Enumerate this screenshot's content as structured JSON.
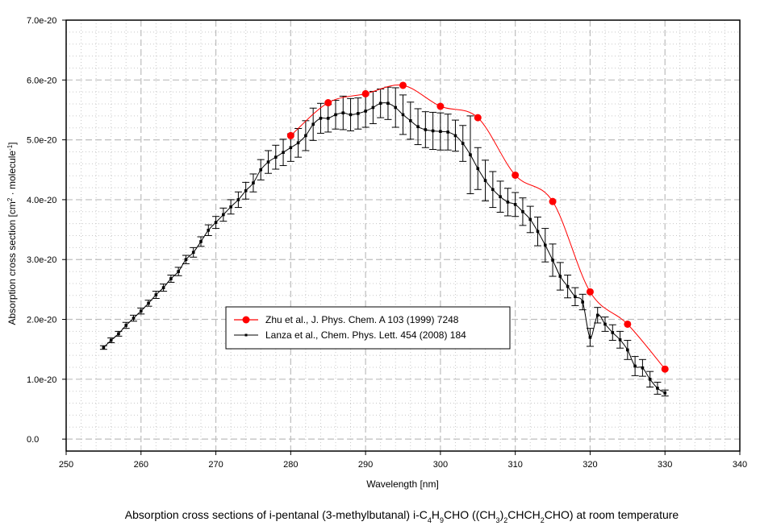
{
  "chart_data": {
    "type": "line",
    "title": "",
    "xlabel": "Wavelength [nm]",
    "ylabel": {
      "prefix": "Absorption cross section [cm",
      "sup1": "2",
      "middle": " · molecule",
      "sup2": "-1",
      "suffix": "]"
    },
    "caption": {
      "p1": "Absorption cross sections of i-pentanal (3-methylbutanal) i-C",
      "s1": "4",
      "p2": "H",
      "s2": "9",
      "p3": "CHO ((CH",
      "s3": "3",
      "p4": ")",
      "s4": "2",
      "p5": "CHCH",
      "s5": "2",
      "p6": "CHO) at room temperature"
    },
    "xlim": [
      250,
      340
    ],
    "ylim": [
      -2e-21,
      7e-20
    ],
    "x_ticks": [
      250,
      260,
      270,
      280,
      290,
      300,
      310,
      320,
      330,
      340
    ],
    "x_tick_labels": [
      "250",
      "260",
      "270",
      "280",
      "290",
      "300",
      "310",
      "320",
      "330",
      "340"
    ],
    "y_ticks": [
      0,
      1e-20,
      2e-20,
      3e-20,
      4e-20,
      5e-20,
      6e-20,
      7e-20
    ],
    "y_tick_labels": [
      "0.0",
      "1.0e-20",
      "2.0e-20",
      "3.0e-20",
      "4.0e-20",
      "5.0e-20",
      "6.0e-20",
      "7.0e-20"
    ],
    "grid": true,
    "legend_position": "center-left",
    "series": [
      {
        "name": "Zhu et al., J. Phys. Chem. A 103 (1999) 7248",
        "color": "#ff0000",
        "marker": "circle",
        "x": [
          280,
          285,
          290,
          295,
          300,
          305,
          310,
          315,
          320,
          325,
          330
        ],
        "y": [
          5.07e-20,
          5.62e-20,
          5.77e-20,
          5.91e-20,
          5.56e-20,
          5.37e-20,
          4.41e-20,
          3.97e-20,
          2.46e-20,
          1.92e-20,
          1.17e-20
        ]
      },
      {
        "name": "Lanza et al., Chem. Phys. Lett. 454 (2008) 184",
        "color": "#000000",
        "marker": "dot",
        "x": [
          255,
          256,
          257,
          258,
          259,
          260,
          261,
          262,
          263,
          264,
          265,
          266,
          267,
          268,
          269,
          270,
          271,
          272,
          273,
          274,
          275,
          276,
          277,
          278,
          279,
          280,
          281,
          282,
          283,
          284,
          285,
          286,
          287,
          288,
          289,
          290,
          291,
          292,
          293,
          294,
          295,
          296,
          297,
          298,
          299,
          300,
          301,
          302,
          303,
          304,
          305,
          306,
          307,
          308,
          309,
          310,
          311,
          312,
          313,
          314,
          315,
          316,
          317,
          318,
          319,
          320,
          321,
          322,
          323,
          324,
          325,
          326,
          327,
          328,
          329,
          330
        ],
        "y": [
          1.53e-20,
          1.65e-20,
          1.76e-20,
          1.9e-20,
          2.02e-20,
          2.14e-20,
          2.27e-20,
          2.41e-20,
          2.53e-20,
          2.68e-20,
          2.8e-20,
          3e-20,
          3.12e-20,
          3.3e-20,
          3.49e-20,
          3.62e-20,
          3.75e-20,
          3.88e-20,
          4e-20,
          4.15e-20,
          4.28e-20,
          4.5e-20,
          4.63e-20,
          4.71e-20,
          4.79e-20,
          4.87e-20,
          4.95e-20,
          5.07e-20,
          5.26e-20,
          5.36e-20,
          5.36e-20,
          5.42e-20,
          5.45e-20,
          5.42e-20,
          5.44e-20,
          5.48e-20,
          5.54e-20,
          5.61e-20,
          5.61e-20,
          5.54e-20,
          5.42e-20,
          5.32e-20,
          5.22e-20,
          5.17e-20,
          5.15e-20,
          5.14e-20,
          5.13e-20,
          5.07e-20,
          4.94e-20,
          4.75e-20,
          4.52e-20,
          4.32e-20,
          4.17e-20,
          4.05e-20,
          3.96e-20,
          3.92e-20,
          3.8e-20,
          3.67e-20,
          3.47e-20,
          3.24e-20,
          2.99e-20,
          2.72e-20,
          2.55e-20,
          2.38e-20,
          2.29e-20,
          1.7e-20,
          2.07e-20,
          1.92e-20,
          1.78e-20,
          1.66e-20,
          1.49e-20,
          1.22e-20,
          1.19e-20,
          1e-20,
          8.5e-21,
          7.7e-21
        ],
        "yerr": [
          3e-22,
          4e-22,
          4e-22,
          5e-22,
          5e-22,
          5e-22,
          5e-22,
          6e-22,
          6e-22,
          6e-22,
          7e-22,
          7e-22,
          8e-22,
          8e-22,
          9e-22,
          1e-21,
          1.1e-21,
          1.2e-21,
          1.3e-21,
          1.4e-21,
          1.5e-21,
          1.7e-21,
          1.9e-21,
          2e-21,
          2.2e-21,
          2.3e-21,
          2.4e-21,
          2.5e-21,
          2.7e-21,
          2.5e-21,
          2.3e-21,
          2.4e-21,
          2.8e-21,
          2.7e-21,
          2.6e-21,
          2.7e-21,
          2.7e-21,
          2.4e-21,
          2.7e-21,
          3.3e-21,
          3.3e-21,
          3.1e-21,
          3e-21,
          3e-21,
          3.1e-21,
          3.1e-21,
          3e-21,
          2.6e-21,
          3e-21,
          6.5e-21,
          3.5e-21,
          3.4e-21,
          3e-21,
          2.6e-21,
          2.3e-21,
          2e-21,
          2.3e-21,
          2.2e-21,
          2.4e-21,
          2.8e-21,
          2.7e-21,
          2.3e-21,
          1.9e-21,
          1.5e-21,
          1.3e-21,
          1.5e-21,
          1.3e-21,
          1.2e-21,
          1.3e-21,
          1.4e-21,
          1.6e-21,
          1.6e-21,
          1.4e-21,
          1.3e-21,
          1e-21,
          5e-22
        ]
      }
    ]
  }
}
